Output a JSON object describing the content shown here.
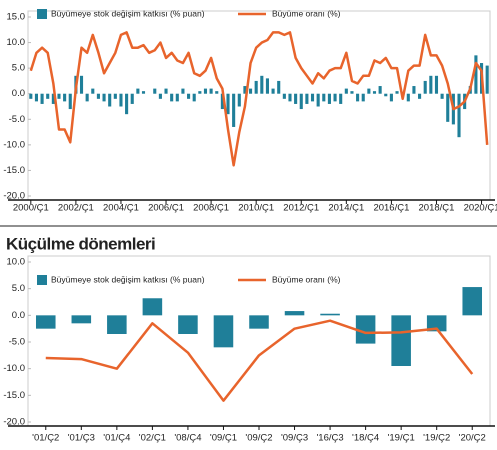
{
  "chart_data": [
    {
      "type": "bar-line",
      "categories": [
        "2000/Ç1",
        null,
        null,
        null,
        null,
        null,
        null,
        null,
        "2002/Ç1",
        null,
        null,
        null,
        null,
        null,
        null,
        null,
        "2004/Ç1",
        null,
        null,
        null,
        null,
        null,
        null,
        null,
        "2006/Ç1",
        null,
        null,
        null,
        null,
        null,
        null,
        null,
        "2008/Ç1",
        null,
        null,
        null,
        null,
        null,
        null,
        null,
        "2010/Ç1",
        null,
        null,
        null,
        null,
        null,
        null,
        null,
        "2012/Ç1",
        null,
        null,
        null,
        null,
        null,
        null,
        null,
        "2014/Ç1",
        null,
        null,
        null,
        null,
        null,
        null,
        null,
        "2016/Ç1",
        null,
        null,
        null,
        null,
        null,
        null,
        null,
        "2018/Ç1",
        null,
        null,
        null,
        null,
        null,
        null,
        null,
        "2020/Ç1",
        null
      ],
      "series": [
        {
          "name": "Büyümeye stok değişim katkısı (% puan)",
          "color": "#1f7f99",
          "kind": "bar",
          "values": [
            -1,
            -1.5,
            -2,
            -1,
            -2,
            -1,
            -1.5,
            -3,
            3.5,
            3.5,
            -1.5,
            1,
            -1,
            -1.5,
            -2.5,
            -1,
            -2.5,
            -4,
            -2,
            1,
            0.5,
            0,
            1,
            -1,
            1,
            -1.5,
            -1.5,
            1,
            -1,
            -1.5,
            0.5,
            1,
            1,
            0.5,
            -3,
            -4,
            -6.5,
            -2.5,
            1.5,
            1,
            2.5,
            3.5,
            3,
            1,
            2.5,
            -1,
            -1.5,
            -2,
            -3,
            -2,
            -1.5,
            -2.5,
            -1.5,
            -2,
            -1.5,
            -2,
            1,
            0.5,
            -1.5,
            -1.5,
            1,
            0.5,
            1.5,
            -0.5,
            -1.5,
            0.5,
            0.3,
            -1.5,
            1.5,
            -1,
            2.5,
            3.5,
            3.5,
            -1,
            -5.5,
            -6,
            -8.5,
            -3,
            1.5,
            7.5,
            6,
            5.5
          ]
        },
        {
          "name": "Büyüme oranı (%)",
          "color": "#e8642c",
          "kind": "line",
          "values": [
            4.5,
            8,
            9,
            8,
            2,
            -7,
            -7,
            -9.5,
            1,
            9,
            8,
            11.5,
            8,
            4,
            6,
            8,
            11.5,
            12,
            9,
            9,
            9.5,
            8,
            8.5,
            10,
            7,
            8,
            6.5,
            6,
            8,
            4,
            3.5,
            4.5,
            7,
            3,
            1,
            -7,
            -14,
            -7.5,
            -2.5,
            6,
            9,
            10,
            10.5,
            12,
            12,
            11.5,
            12,
            7,
            5,
            3.5,
            2,
            4,
            3,
            4.5,
            5,
            5,
            8,
            2.5,
            2,
            3.5,
            3.5,
            6.5,
            6,
            7,
            5,
            5,
            -1,
            4.5,
            5.5,
            5.5,
            11.5,
            7.5,
            7.5,
            5.5,
            2,
            -3,
            -2.5,
            -1.5,
            1,
            6,
            4.5,
            -10
          ]
        }
      ],
      "ylim": [
        -20,
        15
      ],
      "yticks": [
        {
          "value": 15,
          "label": "15.0"
        },
        {
          "value": 10,
          "label": "10.0"
        },
        {
          "value": 5,
          "label": "5.0"
        },
        {
          "value": 0,
          "label": "0.0"
        },
        {
          "value": -5,
          "label": "-5.0"
        },
        {
          "value": -10,
          "label": "-10.0"
        },
        {
          "value": -15,
          "label": "-15.0"
        },
        {
          "value": -20,
          "label": "-20.0"
        }
      ],
      "grid": false,
      "legend": "top"
    },
    {
      "type": "bar-line",
      "title": "Küçülme dönemleri",
      "categories": [
        "'01/Ç2",
        "'01/Ç3",
        "'01/Ç4",
        "'02/Ç1",
        "'08/Ç4",
        "'09/Ç1",
        "'09/Ç2",
        "'09/Ç3",
        "'16/Ç3",
        "'18/Ç4",
        "'19/Ç1",
        "'19/Ç2",
        "'20/Ç2"
      ],
      "series": [
        {
          "name": "Büyümeye stok değişim katkısı (% puan)",
          "color": "#1f7f99",
          "kind": "bar",
          "values": [
            -2.5,
            -1.5,
            -3.5,
            3.2,
            -3.5,
            -6,
            -2.5,
            0.8,
            0.3,
            -5.3,
            -9.5,
            -3,
            5.3
          ]
        },
        {
          "name": "Büyüme oranı (%)",
          "color": "#e8642c",
          "kind": "line",
          "values": [
            -8,
            -8.2,
            -10,
            -1.5,
            -7,
            -16,
            -7.5,
            -2.5,
            -1,
            -3.3,
            -3.2,
            -2.5,
            -11
          ]
        }
      ],
      "ylim": [
        -20,
        10
      ],
      "yticks": [
        {
          "value": 10,
          "label": "10.0"
        },
        {
          "value": 5,
          "label": "5.0"
        },
        {
          "value": 0,
          "label": "0.0"
        },
        {
          "value": -5,
          "label": "-5.0"
        },
        {
          "value": -10,
          "label": "-10.0"
        },
        {
          "value": -15,
          "label": "-15.0"
        },
        {
          "value": -20,
          "label": "-20.0"
        }
      ],
      "grid": false,
      "legend": "top"
    }
  ]
}
